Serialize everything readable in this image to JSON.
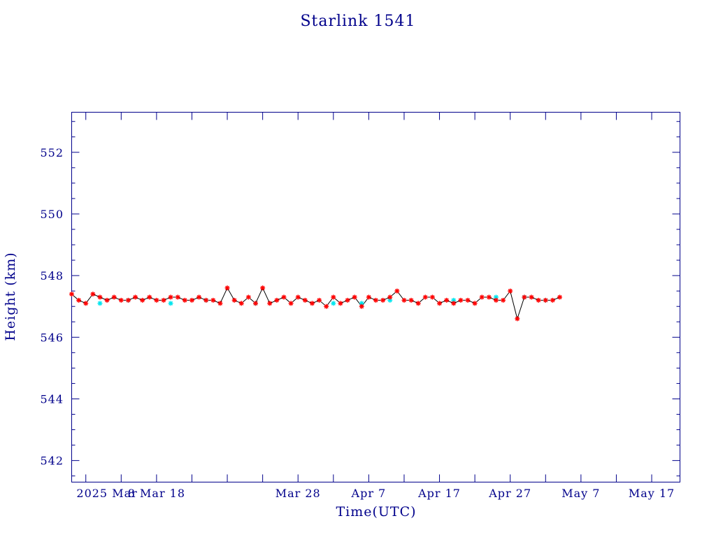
{
  "chart_data": {
    "type": "scatter",
    "title": "Starlink 1541",
    "xlabel": "Time(UTC)",
    "ylabel": "Height (km)",
    "xlim": [
      "2025-02-24",
      "2025-05-21"
    ],
    "ylim": [
      541.3,
      553.3
    ],
    "grid": false,
    "x_ticks": [
      {
        "date": "2025-03-01",
        "label": "2025 Mar"
      },
      {
        "date": "2025-03-08",
        "label": "8 Mar 18"
      },
      {
        "date": "2025-03-28",
        "label": "Mar 28"
      },
      {
        "date": "2025-04-07",
        "label": "Apr  7"
      },
      {
        "date": "2025-04-17",
        "label": "Apr 17"
      },
      {
        "date": "2025-04-27",
        "label": "Apr 27"
      },
      {
        "date": "2025-05-07",
        "label": "May  7"
      },
      {
        "date": "2025-05-17",
        "label": "May 17"
      }
    ],
    "y_ticks": [
      542,
      544,
      546,
      548,
      550,
      552
    ],
    "colors": {
      "frame": "#00008b",
      "line": "#000000",
      "marker_primary": "#ff0000",
      "marker_secondary": "#00e5ee"
    },
    "series": [
      {
        "marker": "star",
        "color": "#ff0000",
        "x": [
          "2025-02-24",
          "2025-02-25",
          "2025-02-26",
          "2025-02-27",
          "2025-02-28",
          "2025-03-01",
          "2025-03-02",
          "2025-03-03",
          "2025-03-04",
          "2025-03-05",
          "2025-03-06",
          "2025-03-07",
          "2025-03-08",
          "2025-03-09",
          "2025-03-10",
          "2025-03-11",
          "2025-03-12",
          "2025-03-13",
          "2025-03-14",
          "2025-03-15",
          "2025-03-16",
          "2025-03-17",
          "2025-03-18",
          "2025-03-19",
          "2025-03-20",
          "2025-03-21",
          "2025-03-22",
          "2025-03-23",
          "2025-03-24",
          "2025-03-25",
          "2025-03-26",
          "2025-03-27",
          "2025-03-28",
          "2025-03-29",
          "2025-03-30",
          "2025-03-31",
          "2025-04-01",
          "2025-04-02",
          "2025-04-03",
          "2025-04-04",
          "2025-04-05",
          "2025-04-06",
          "2025-04-07",
          "2025-04-08",
          "2025-04-09",
          "2025-04-10",
          "2025-04-11",
          "2025-04-12",
          "2025-04-13",
          "2025-04-14",
          "2025-04-15",
          "2025-04-16",
          "2025-04-17",
          "2025-04-18",
          "2025-04-19",
          "2025-04-20",
          "2025-04-21",
          "2025-04-22",
          "2025-04-23",
          "2025-04-24",
          "2025-04-25",
          "2025-04-26",
          "2025-04-27",
          "2025-04-28",
          "2025-04-29",
          "2025-04-30",
          "2025-05-01",
          "2025-05-02",
          "2025-05-03",
          "2025-05-04"
        ],
        "y": [
          547.4,
          547.2,
          547.1,
          547.4,
          547.3,
          547.2,
          547.3,
          547.2,
          547.2,
          547.3,
          547.2,
          547.3,
          547.2,
          547.2,
          547.3,
          547.3,
          547.2,
          547.2,
          547.3,
          547.2,
          547.2,
          547.1,
          547.6,
          547.2,
          547.1,
          547.3,
          547.1,
          547.6,
          547.1,
          547.2,
          547.3,
          547.1,
          547.3,
          547.2,
          547.1,
          547.2,
          547.0,
          547.3,
          547.1,
          547.2,
          547.3,
          547.0,
          547.3,
          547.2,
          547.2,
          547.3,
          547.5,
          547.2,
          547.2,
          547.1,
          547.3,
          547.3,
          547.1,
          547.2,
          547.1,
          547.2,
          547.2,
          547.1,
          547.3,
          547.3,
          547.2,
          547.2,
          547.5,
          546.6,
          547.3,
          547.3,
          547.2,
          547.2,
          547.2,
          547.3
        ]
      },
      {
        "marker": "star",
        "color": "#00e5ee",
        "x": [
          "2025-02-28",
          "2025-03-04",
          "2025-03-10",
          "2025-03-15",
          "2025-03-22",
          "2025-04-02",
          "2025-04-06",
          "2025-04-10",
          "2025-04-19",
          "2025-04-25",
          "2025-04-29",
          "2025-05-02"
        ],
        "y": [
          547.1,
          547.2,
          547.1,
          547.2,
          547.1,
          547.1,
          547.1,
          547.2,
          547.2,
          547.3,
          547.3,
          547.2
        ]
      }
    ]
  }
}
